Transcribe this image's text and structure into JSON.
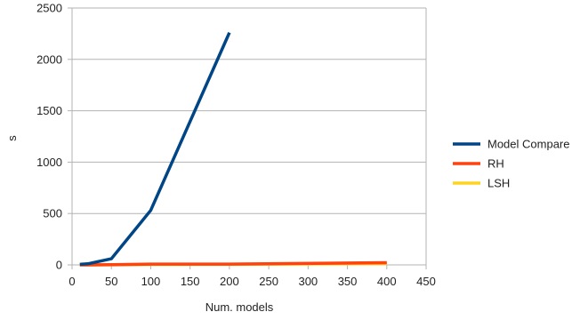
{
  "chart_data": {
    "type": "line",
    "xlabel": "Num. models",
    "ylabel": "s",
    "xlim": [
      0,
      450
    ],
    "ylim": [
      0,
      2500
    ],
    "x_ticks": [
      0,
      50,
      100,
      150,
      200,
      250,
      300,
      350,
      400,
      450
    ],
    "y_ticks": [
      0,
      500,
      1000,
      1500,
      2000,
      2500
    ],
    "grid": "horizontal",
    "legend_position": "right",
    "series": [
      {
        "name": "Model Compare",
        "color": "#004586",
        "x": [
          10,
          20,
          50,
          100,
          200
        ],
        "y": [
          5,
          10,
          60,
          530,
          2260
        ]
      },
      {
        "name": "RH",
        "color": "#ff420e",
        "x": [
          10,
          20,
          50,
          100,
          200,
          400
        ],
        "y": [
          0,
          0,
          2,
          8,
          8,
          22
        ]
      },
      {
        "name": "LSH",
        "color": "#ffd320",
        "x": [
          10,
          20,
          50,
          100,
          200,
          400
        ],
        "y": [
          0,
          0,
          1,
          4,
          5,
          12
        ]
      }
    ]
  }
}
